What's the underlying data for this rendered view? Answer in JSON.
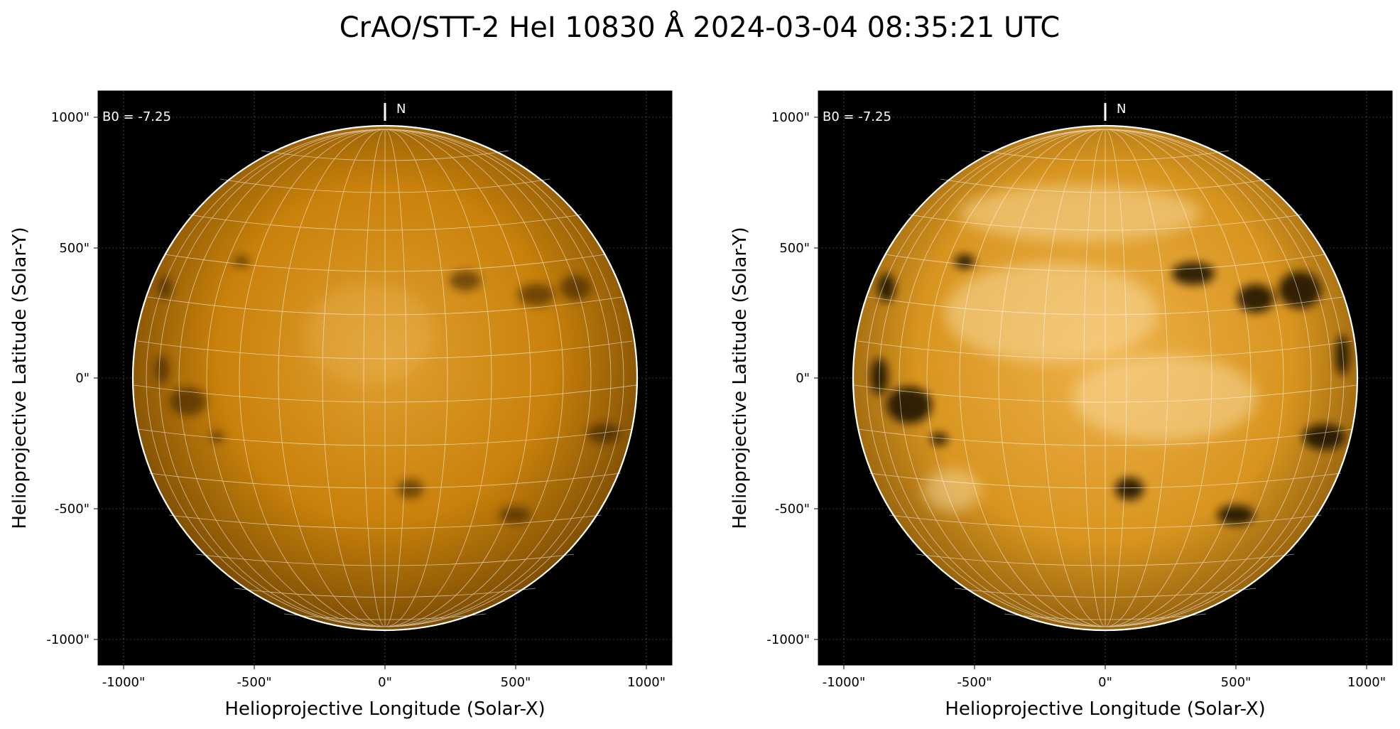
{
  "figure": {
    "title": "CrAO/STT-2 HeI 10830 Å 2024-03-04 08:35:21 UTC"
  },
  "panels": [
    {
      "id": "left",
      "xlabel": "Helioprojective Longitude (Solar-X)",
      "ylabel": "Helioprojective Latitude (Solar-Y)",
      "b0_label": "B0 = -7.25",
      "north_label": "N",
      "xticks": [
        {
          "value": -1000,
          "label": "-1000\""
        },
        {
          "value": -500,
          "label": "-500\""
        },
        {
          "value": 0,
          "label": "0\""
        },
        {
          "value": 500,
          "label": "500\""
        },
        {
          "value": 1000,
          "label": "1000\""
        }
      ],
      "yticks": [
        {
          "value": 1000,
          "label": "1000\""
        },
        {
          "value": 500,
          "label": "500\""
        },
        {
          "value": 0,
          "label": "0\""
        },
        {
          "value": -500,
          "label": "-500\""
        },
        {
          "value": -1000,
          "label": "-1000\""
        }
      ],
      "contrast": "normal"
    },
    {
      "id": "right",
      "xlabel": "Helioprojective Longitude (Solar-X)",
      "ylabel": "Helioprojective Latitude (Solar-Y)",
      "b0_label": "B0 = -7.25",
      "north_label": "N",
      "xticks": [
        {
          "value": -1000,
          "label": "-1000\""
        },
        {
          "value": -500,
          "label": "-500\""
        },
        {
          "value": 0,
          "label": "0\""
        },
        {
          "value": 500,
          "label": "500\""
        },
        {
          "value": 1000,
          "label": "1000\""
        }
      ],
      "yticks": [
        {
          "value": 1000,
          "label": "1000\""
        },
        {
          "value": 500,
          "label": "500\""
        },
        {
          "value": 0,
          "label": "0\""
        },
        {
          "value": -500,
          "label": "-500\""
        },
        {
          "value": -1000,
          "label": "-1000\""
        }
      ],
      "contrast": "enhanced"
    }
  ],
  "colors": {
    "background": "#000000",
    "disk_base": "#c8800a",
    "disk_light": "#e8a636",
    "disk_enhanced_light": "#f3c673",
    "limb_line": "#ffffff",
    "grid_line": "#ffffff"
  }
}
